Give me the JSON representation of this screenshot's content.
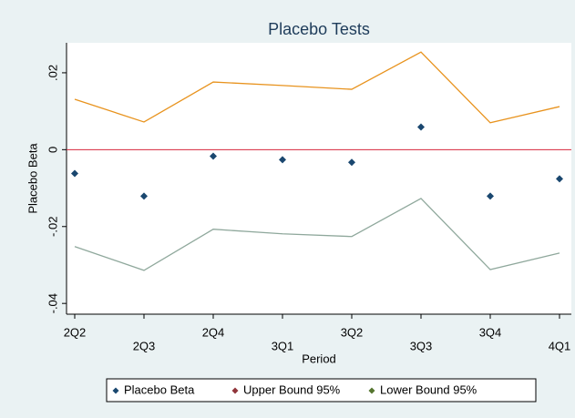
{
  "chart_data": {
    "type": "line",
    "title": "Placebo Tests",
    "x_label": "Period",
    "y_label": "Placebo Beta",
    "categories": [
      "2Q2",
      "2Q3",
      "2Q4",
      "3Q1",
      "3Q2",
      "3Q3",
      "3Q4",
      "4Q1"
    ],
    "series": [
      {
        "name": "Placebo Beta",
        "color": "#1a476f",
        "legend_color": "#1a476f",
        "style": "markers",
        "values": [
          -0.0062,
          -0.0121,
          -0.0017,
          -0.0026,
          -0.0033,
          0.0059,
          -0.0121,
          -0.0076
        ]
      },
      {
        "name": "Upper Bound 95%",
        "color": "#e8931e",
        "legend_color": "#90353b",
        "style": "line",
        "values": [
          0.0131,
          0.0072,
          0.0176,
          0.0167,
          0.0157,
          0.0254,
          0.007,
          0.0112
        ]
      },
      {
        "name": "Lower Bound 95%",
        "color": "#8fa89c",
        "legend_color": "#55752f",
        "style": "line",
        "values": [
          -0.0252,
          -0.0314,
          -0.0207,
          -0.0219,
          -0.0226,
          -0.0127,
          -0.0312,
          -0.0269
        ]
      }
    ],
    "reference_line": 0,
    "reference_color": "#d7263d",
    "ylim": [
      -0.0428,
      0.0278
    ],
    "yticks": [
      {
        "value": 0.02,
        "label": ".02"
      },
      0,
      {
        "value": -0.02,
        "label": "-.02"
      },
      {
        "value": -0.04,
        "label": "-.04"
      }
    ],
    "legend": "bottom"
  }
}
